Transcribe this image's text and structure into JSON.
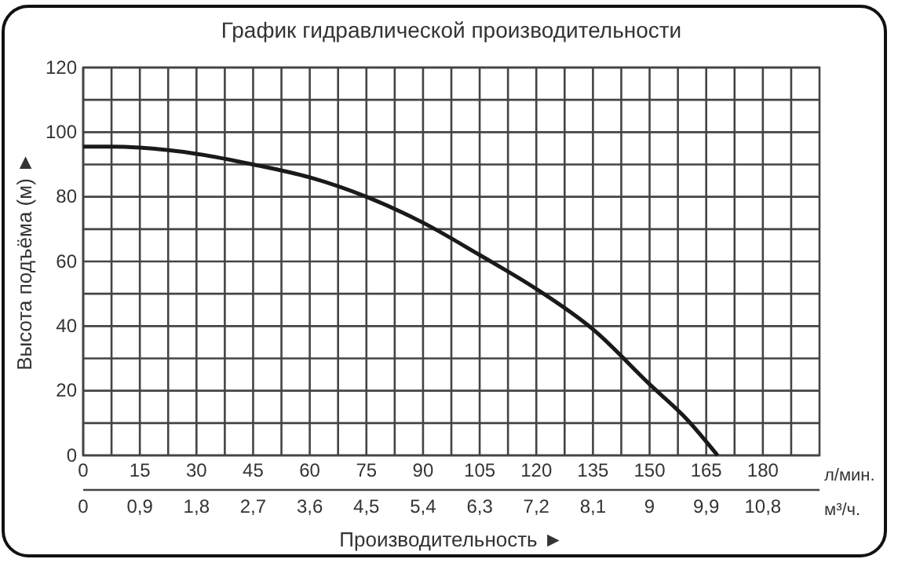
{
  "chart_data": {
    "type": "line",
    "title": "График гидравлической производительности",
    "xlabel": "Производительность ►",
    "ylabel": "Высота подъёма (м) ►",
    "x": [
      0,
      7.5,
      15,
      30,
      45,
      60,
      75,
      90,
      105,
      120,
      135,
      150,
      160,
      168
    ],
    "series": [
      {
        "color": "#1a1a1a",
        "values": [
          95.5,
          95.5,
          95.2,
          93.3,
          90,
          86,
          80,
          72,
          62,
          51.5,
          39,
          22,
          11,
          0
        ]
      }
    ],
    "xlim": [
      0,
      195
    ],
    "ylim": [
      0,
      120
    ],
    "xticks": [
      0,
      {
        "value": 7.5,
        "label": null
      },
      15,
      {
        "value": 22.5,
        "label": null
      },
      30,
      {
        "value": 37.5,
        "label": null
      },
      45,
      {
        "value": 52.5,
        "label": null
      },
      60,
      {
        "value": 67.5,
        "label": null
      },
      75,
      {
        "value": 82.5,
        "label": null
      },
      90,
      {
        "value": 97.5,
        "label": null
      },
      105,
      {
        "value": 112.5,
        "label": null
      },
      120,
      {
        "value": 127.5,
        "label": null
      },
      135,
      {
        "value": 142.5,
        "label": null
      },
      150,
      {
        "value": 157.5,
        "label": null
      },
      165,
      {
        "value": 172.5,
        "label": null
      },
      180,
      {
        "value": 187.5,
        "label": null
      }
    ],
    "yticks": [
      0,
      {
        "value": 10,
        "label": null
      },
      20,
      {
        "value": 30,
        "label": null
      },
      40,
      {
        "value": 50,
        "label": null
      },
      60,
      {
        "value": 70,
        "label": null
      },
      80,
      {
        "value": 90,
        "label": null
      },
      100,
      {
        "value": 110,
        "label": null
      },
      120
    ],
    "x2lim": [
      0,
      11.7
    ],
    "x2ticks": [
      0,
      {
        "value": 0.9,
        "label": "0,9"
      },
      {
        "value": 1.8,
        "label": "1,8"
      },
      {
        "value": 2.7,
        "label": "2,7"
      },
      {
        "value": 3.6,
        "label": "3,6"
      },
      {
        "value": 4.5,
        "label": "4,5"
      },
      {
        "value": 5.4,
        "label": "5,4"
      },
      {
        "value": 6.3,
        "label": "6,3"
      },
      {
        "value": 7.2,
        "label": "7,2"
      },
      {
        "value": 8.1,
        "label": "8,1"
      },
      9,
      {
        "value": 9.9,
        "label": "9,9"
      },
      {
        "value": 10.8,
        "label": "10,8"
      }
    ],
    "annotations": [
      "л/мин.",
      "м³/ч."
    ],
    "grid": true,
    "line_style": "solid",
    "marker": "none"
  }
}
